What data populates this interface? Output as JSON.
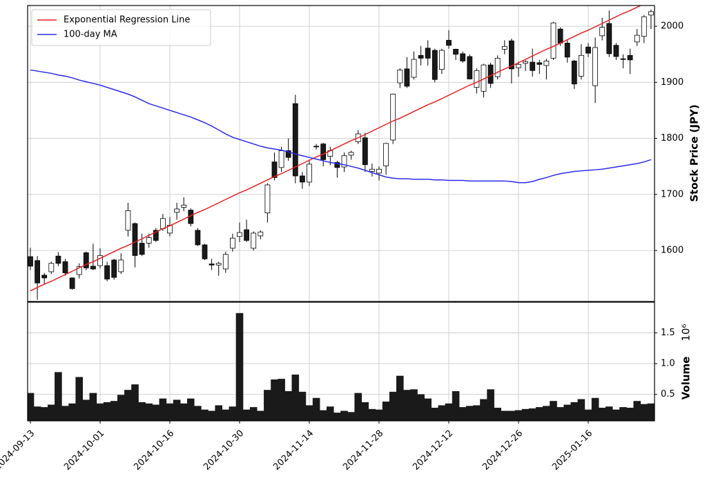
{
  "chart_data": [
    {
      "type": "candlestick",
      "ylabel": "Stock Price (JPY)",
      "open": [
        1589,
        1582,
        1556,
        1562,
        1590,
        1580,
        1551,
        1557,
        1596,
        1572,
        1573,
        1573,
        1583,
        1562,
        1636,
        1648,
        1613,
        1613,
        1636,
        1639,
        1631,
        1668,
        1677,
        1672,
        1636,
        1610,
        1576,
        1574,
        1567,
        1604,
        1625,
        1637,
        1604,
        1626,
        1667,
        1758,
        1748,
        1778,
        1862,
        1733,
        1722,
        1786,
        1790,
        1768,
        1757,
        1749,
        1770,
        1794,
        1801,
        1741,
        1738,
        1751,
        1797,
        1899,
        1924,
        1909,
        1948,
        1961,
        1957,
        1923,
        1975,
        1959,
        1951,
        1946,
        1891,
        1884,
        1931,
        1910,
        1959,
        1974,
        1926,
        1934,
        1936,
        1935,
        1930,
        1943,
        1995,
        1970,
        1938,
        1911,
        1963,
        1894,
        1983,
        2005,
        1966,
        1942,
        1948,
        1972,
        1982,
        2020
      ],
      "high": [
        1605,
        1590,
        1560,
        1580,
        1597,
        1585,
        1552,
        1577,
        1598,
        1612,
        1604,
        1580,
        1585,
        1595,
        1685,
        1650,
        1630,
        1630,
        1640,
        1665,
        1660,
        1685,
        1695,
        1675,
        1640,
        1612,
        1585,
        1580,
        1598,
        1630,
        1650,
        1655,
        1634,
        1636,
        1720,
        1775,
        1785,
        1800,
        1878,
        1740,
        1760,
        1790,
        1792,
        1785,
        1760,
        1775,
        1778,
        1815,
        1810,
        1755,
        1750,
        1792,
        1880,
        1925,
        1945,
        1955,
        1965,
        1975,
        1960,
        1960,
        1993,
        1960,
        1955,
        1950,
        1925,
        1933,
        1935,
        1948,
        1975,
        1978,
        1937,
        1940,
        1960,
        1940,
        1942,
        2008,
        1998,
        1975,
        1940,
        1968,
        1970,
        1980,
        2015,
        2028,
        1970,
        1950,
        1960,
        1995,
        2020,
        2030
      ],
      "low": [
        1565,
        1512,
        1540,
        1558,
        1572,
        1555,
        1530,
        1550,
        1565,
        1565,
        1568,
        1545,
        1548,
        1558,
        1625,
        1570,
        1590,
        1605,
        1615,
        1635,
        1625,
        1655,
        1670,
        1643,
        1608,
        1583,
        1565,
        1555,
        1560,
        1598,
        1615,
        1615,
        1600,
        1620,
        1650,
        1725,
        1740,
        1760,
        1720,
        1710,
        1715,
        1780,
        1750,
        1752,
        1730,
        1740,
        1762,
        1790,
        1740,
        1732,
        1725,
        1735,
        1790,
        1890,
        1890,
        1905,
        1930,
        1930,
        1900,
        1915,
        1960,
        1940,
        1935,
        1905,
        1880,
        1873,
        1890,
        1905,
        1950,
        1898,
        1910,
        1920,
        1910,
        1915,
        1905,
        1940,
        1965,
        1935,
        1888,
        1905,
        1945,
        1863,
        1975,
        1945,
        1940,
        1925,
        1915,
        1965,
        1970,
        1995
      ],
      "close": [
        1572,
        1542,
        1551,
        1577,
        1577,
        1560,
        1532,
        1571,
        1569,
        1567,
        1591,
        1549,
        1552,
        1583,
        1671,
        1591,
        1593,
        1623,
        1618,
        1657,
        1645,
        1674,
        1681,
        1648,
        1610,
        1585,
        1574,
        1577,
        1593,
        1622,
        1632,
        1618,
        1631,
        1633,
        1717,
        1730,
        1778,
        1766,
        1733,
        1722,
        1754,
        1785,
        1762,
        1778,
        1748,
        1769,
        1775,
        1808,
        1753,
        1745,
        1745,
        1791,
        1879,
        1922,
        1893,
        1941,
        1943,
        1943,
        1905,
        1957,
        1966,
        1950,
        1938,
        1906,
        1921,
        1931,
        1898,
        1943,
        1964,
        1924,
        1932,
        1937,
        1921,
        1932,
        1938,
        2006,
        1970,
        1945,
        1897,
        1948,
        1952,
        1962,
        1998,
        1951,
        1946,
        1941,
        1940,
        1984,
        2017,
        2026
      ],
      "up_color": "#ffffff",
      "down_color": "#1a1a1a",
      "series": [
        {
          "name": "Exponential Regression Line",
          "color": "#ee1c1c",
          "values": [
            1528,
            1534,
            1540,
            1545,
            1551,
            1557,
            1563,
            1569,
            1575,
            1580,
            1586,
            1592,
            1598,
            1604,
            1609,
            1615,
            1621,
            1627,
            1633,
            1639,
            1644,
            1650,
            1656,
            1662,
            1668,
            1673,
            1679,
            1685,
            1691,
            1697,
            1703,
            1708,
            1714,
            1720,
            1726,
            1732,
            1737,
            1743,
            1749,
            1755,
            1761,
            1767,
            1772,
            1778,
            1784,
            1790,
            1796,
            1801,
            1807,
            1813,
            1819,
            1825,
            1831,
            1836,
            1842,
            1848,
            1854,
            1860,
            1865,
            1871,
            1877,
            1883,
            1889,
            1895,
            1900,
            1906,
            1912,
            1918,
            1924,
            1929,
            1935,
            1941,
            1947,
            1953,
            1959,
            1964,
            1970,
            1976,
            1982,
            1988,
            1993,
            1999,
            2005,
            2011,
            2017,
            2023,
            2028,
            2034,
            2040,
            2046
          ]
        },
        {
          "name": "100-day MA",
          "color": "#2a2aee",
          "values": [
            1922,
            1920,
            1918,
            1916,
            1913,
            1911,
            1908,
            1904,
            1901,
            1898,
            1895,
            1891,
            1887,
            1883,
            1879,
            1874,
            1868,
            1862,
            1858,
            1854,
            1850,
            1846,
            1842,
            1838,
            1833,
            1828,
            1822,
            1815,
            1808,
            1802,
            1798,
            1794,
            1790,
            1786,
            1783,
            1781,
            1779,
            1776,
            1772,
            1769,
            1766,
            1763,
            1760,
            1757,
            1755,
            1753,
            1750,
            1747,
            1743,
            1739,
            1735,
            1731,
            1729,
            1728,
            1728,
            1727,
            1727,
            1727,
            1726,
            1726,
            1725,
            1725,
            1725,
            1724,
            1724,
            1724,
            1724,
            1724,
            1724,
            1723,
            1721,
            1721,
            1723,
            1727,
            1730,
            1734,
            1737,
            1739,
            1741,
            1742,
            1743,
            1744,
            1745,
            1747,
            1749,
            1751,
            1753,
            1755,
            1758,
            1762
          ]
        }
      ],
      "ylim": [
        1509,
        2037
      ],
      "yticks": [
        1600,
        1700,
        1800,
        1900,
        2000
      ],
      "grid": true,
      "legend": "upper left"
    },
    {
      "type": "bar",
      "ylabel": "Volume",
      "offset_label": "10⁶",
      "categories": [
        "2024-09-13",
        null,
        null,
        null,
        null,
        null,
        null,
        null,
        null,
        null,
        "2024-10-01",
        null,
        null,
        null,
        null,
        null,
        null,
        null,
        null,
        null,
        "2024-10-16",
        null,
        null,
        null,
        null,
        null,
        null,
        null,
        null,
        null,
        "2024-10-30",
        null,
        null,
        null,
        null,
        null,
        null,
        null,
        null,
        null,
        "2024-11-14",
        null,
        null,
        null,
        null,
        null,
        null,
        null,
        null,
        null,
        "2024-11-28",
        null,
        null,
        null,
        null,
        null,
        null,
        null,
        null,
        null,
        "2024-12-12",
        null,
        null,
        null,
        null,
        null,
        null,
        null,
        null,
        null,
        "2024-12-26",
        null,
        null,
        null,
        null,
        null,
        null,
        null,
        null,
        null,
        "2025-01-16",
        null,
        null,
        null,
        null,
        null,
        null,
        null,
        null,
        null
      ],
      "values": [
        0.52,
        0.3,
        0.29,
        0.33,
        0.86,
        0.31,
        0.35,
        0.78,
        0.41,
        0.52,
        0.35,
        0.37,
        0.39,
        0.49,
        0.57,
        0.66,
        0.37,
        0.35,
        0.33,
        0.43,
        0.35,
        0.41,
        0.35,
        0.43,
        0.31,
        0.25,
        0.23,
        0.32,
        0.25,
        0.3,
        1.82,
        0.25,
        0.29,
        0.23,
        0.57,
        0.74,
        0.75,
        0.55,
        0.82,
        0.54,
        0.32,
        0.44,
        0.24,
        0.3,
        0.2,
        0.23,
        0.21,
        0.52,
        0.37,
        0.26,
        0.25,
        0.38,
        0.54,
        0.8,
        0.57,
        0.58,
        0.5,
        0.43,
        0.28,
        0.32,
        0.35,
        0.55,
        0.29,
        0.31,
        0.32,
        0.42,
        0.58,
        0.28,
        0.23,
        0.23,
        0.24,
        0.26,
        0.27,
        0.29,
        0.31,
        0.39,
        0.29,
        0.33,
        0.37,
        0.42,
        0.25,
        0.44,
        0.28,
        0.3,
        0.25,
        0.29,
        0.28,
        0.39,
        0.34,
        0.35
      ],
      "color": "#1a1a1a",
      "ylim": [
        0.07,
        2.0
      ],
      "yticks": [
        0.5,
        {
          "value": 1,
          "label": "1.0"
        },
        1.5
      ],
      "grid": true
    }
  ]
}
